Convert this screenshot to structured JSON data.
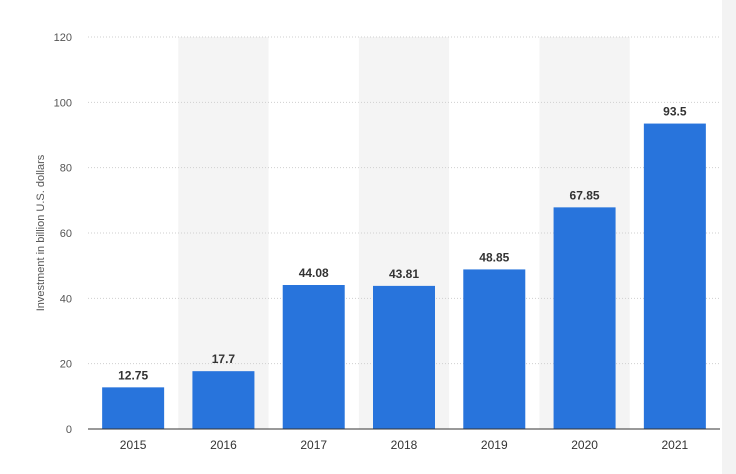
{
  "chart_data": {
    "type": "bar",
    "categories": [
      "2015",
      "2016",
      "2017",
      "2018",
      "2019",
      "2020",
      "2021"
    ],
    "values": [
      12.75,
      17.7,
      44.08,
      43.81,
      48.85,
      67.85,
      93.5
    ],
    "data_labels": [
      "12.75",
      "17.7",
      "44.08",
      "43.81",
      "48.85",
      "67.85",
      "93.5"
    ],
    "title": "",
    "xlabel": "",
    "ylabel": "Investment in billion U.S. dollars",
    "ylim": [
      0,
      120
    ],
    "yticks": [
      "0",
      "20",
      "40",
      "60",
      "80",
      "100",
      "120"
    ],
    "grid": true,
    "grid_style": "dotted horizontal",
    "alternating_column_shading": true,
    "colors": {
      "bar": "#2874dc",
      "shade": "#f4f4f4",
      "grid": "#cfcfcf",
      "axis": "#333333"
    }
  }
}
